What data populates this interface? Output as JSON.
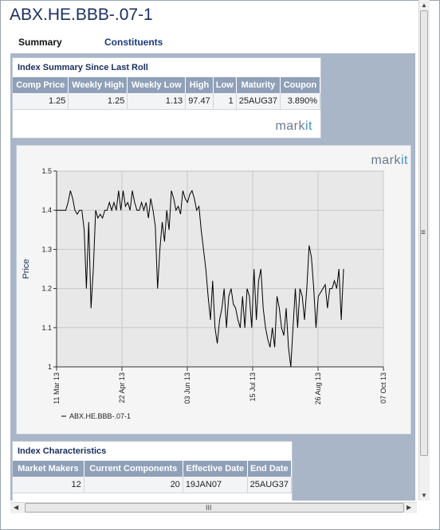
{
  "page": {
    "title": "ABX.HE.BBB-.07-1"
  },
  "tabs": [
    {
      "label": "Summary",
      "active": true
    },
    {
      "label": "Constituents",
      "active": false
    }
  ],
  "summary": {
    "title": "Index Summary Since Last Roll",
    "headers": [
      "Comp Price",
      "Weekly High",
      "Weekly Low",
      "High",
      "Low",
      "Maturity",
      "Coupon"
    ],
    "row": [
      "1.25",
      "1.25",
      "1.13",
      "97.47",
      "1",
      "25AUG37",
      "3.890%"
    ],
    "logo": {
      "main": "mark",
      "accent": "it"
    }
  },
  "chart_logo": {
    "main": "mark",
    "accent": "it"
  },
  "chart_data": {
    "type": "line",
    "xlabel": "",
    "ylabel": "Price",
    "ylim": [
      1,
      1.5
    ],
    "yticks": [
      "1",
      "1.1",
      "1.2",
      "1.3",
      "1.4",
      "1.5"
    ],
    "xticks": [
      "11 Mar 13",
      "22 Apr 13",
      "03 Jun 13",
      "15 Jul 13",
      "26 Aug 13",
      "07 Oct 13"
    ],
    "series": [
      {
        "name": "ABX.HE.BBB-.07-1",
        "x": [
          0,
          1,
          2,
          3,
          4,
          5,
          6,
          7,
          8,
          9,
          10,
          11,
          12,
          13,
          14,
          15,
          16,
          17,
          18,
          19,
          20,
          21,
          22,
          23,
          24,
          25,
          26,
          27,
          28,
          29,
          30,
          31,
          32,
          33,
          34,
          35,
          36,
          37,
          38,
          39,
          40,
          41,
          42,
          43,
          44,
          45,
          46,
          47,
          48,
          49,
          50,
          51,
          52,
          53,
          54,
          55,
          56,
          57,
          58,
          59,
          60,
          61,
          62,
          63,
          64,
          65,
          66,
          67,
          68,
          69,
          70,
          71,
          72,
          73,
          74,
          75,
          76,
          77,
          78,
          79,
          80,
          81,
          82,
          83,
          84,
          85,
          86,
          87,
          88,
          89,
          90,
          91,
          92,
          93,
          94,
          95,
          96,
          97,
          98,
          99,
          100,
          101,
          102,
          103,
          104,
          105,
          106,
          107,
          108,
          109,
          110,
          111,
          112,
          113,
          114,
          115,
          116,
          117,
          118,
          119,
          120,
          121,
          122,
          123,
          124,
          125
        ],
        "values": [
          1.4,
          1.4,
          1.4,
          1.4,
          1.4,
          1.42,
          1.45,
          1.43,
          1.4,
          1.39,
          1.4,
          1.4,
          1.35,
          1.2,
          1.37,
          1.15,
          1.25,
          1.4,
          1.38,
          1.39,
          1.38,
          1.4,
          1.4,
          1.42,
          1.4,
          1.42,
          1.4,
          1.45,
          1.4,
          1.45,
          1.41,
          1.42,
          1.4,
          1.45,
          1.42,
          1.4,
          1.4,
          1.42,
          1.4,
          1.42,
          1.38,
          1.43,
          1.4,
          1.36,
          1.2,
          1.3,
          1.37,
          1.32,
          1.4,
          1.35,
          1.45,
          1.43,
          1.4,
          1.41,
          1.39,
          1.45,
          1.43,
          1.42,
          1.44,
          1.45,
          1.43,
          1.4,
          1.41,
          1.35,
          1.3,
          1.25,
          1.18,
          1.12,
          1.22,
          1.1,
          1.06,
          1.12,
          1.15,
          1.2,
          1.1,
          1.18,
          1.2,
          1.16,
          1.15,
          1.12,
          1.1,
          1.18,
          1.1,
          1.2,
          1.18,
          1.1,
          1.25,
          1.12,
          1.22,
          1.25,
          1.15,
          1.1,
          1.07,
          1.05,
          1.1,
          1.05,
          1.18,
          1.15,
          1.1,
          1.08,
          1.15,
          1.05,
          1.0,
          1.1,
          1.2,
          1.1,
          1.2,
          1.18,
          1.12,
          1.2,
          1.31,
          1.28,
          1.2,
          1.1,
          1.18,
          1.19,
          1.2,
          1.21,
          1.15,
          1.2,
          1.2,
          1.22,
          1.2,
          1.25,
          1.12,
          1.25
        ]
      }
    ]
  },
  "characteristics": {
    "title": "Index Characteristics",
    "headers": [
      "Market Makers",
      "Current Components",
      "Effective Date",
      "End Date"
    ],
    "row": [
      "12",
      "20",
      "19JAN07",
      "25AUG37"
    ]
  },
  "scrollbar": {
    "h_grip": "III",
    "v_grip": "≡"
  }
}
